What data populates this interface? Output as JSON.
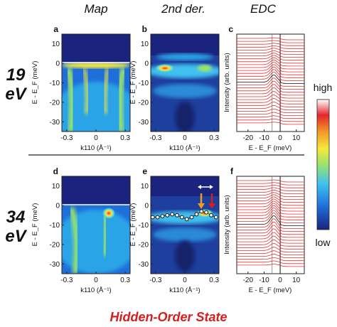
{
  "columns": [
    "Map",
    "2nd der.",
    "EDC"
  ],
  "rows": [
    {
      "line1": "19",
      "line2": "eV"
    },
    {
      "line1": "34",
      "line2": "eV"
    }
  ],
  "panel_labels": {
    "a": "a",
    "b": "b",
    "c": "c",
    "d": "d",
    "e": "e",
    "f": "f"
  },
  "axes": {
    "y_label": "E - E_F (meV)",
    "x_k_label": "k110 (Å⁻¹)",
    "edc_y_label": "Intensity (arb. units)",
    "edc_x_label": "E - E_F (meV)",
    "y_ticks": [
      "10",
      "0",
      "-10",
      "-20",
      "-30"
    ],
    "k_ticks": [
      "-0.3",
      "0",
      "0.3"
    ],
    "edc_ticks": [
      "-20",
      "-10",
      "0",
      "10"
    ]
  },
  "colorbar": {
    "high": "high",
    "low": "low",
    "colors": [
      "#1a237e",
      "#1e6fd9",
      "#3fc1f0",
      "#9be36b",
      "#f7e93a",
      "#f29a27",
      "#e3262a",
      "#ffffff"
    ]
  },
  "title": "Hidden-Order State",
  "chart_data": [
    {
      "type": "heatmap",
      "panel": "a",
      "xlim": [
        -0.35,
        0.35
      ],
      "ylim": [
        -35,
        15
      ],
      "xlabel": "k110 (Å⁻¹)",
      "ylabel": "E - E_F (meV)"
    },
    {
      "type": "heatmap",
      "panel": "b",
      "xlim": [
        -0.35,
        0.35
      ],
      "ylim": [
        -35,
        15
      ],
      "xlabel": "k110 (Å⁻¹)",
      "ylabel": "E - E_F (meV)"
    },
    {
      "type": "line",
      "panel": "c",
      "xlim": [
        -27,
        15
      ],
      "xlabel": "E - E_F (meV)",
      "ylabel": "Intensity (arb. units)",
      "n_curves": 30
    },
    {
      "type": "heatmap",
      "panel": "d",
      "xlim": [
        -0.35,
        0.35
      ],
      "ylim": [
        -35,
        15
      ],
      "xlabel": "k110 (Å⁻¹)",
      "ylabel": "E - E_F (meV)"
    },
    {
      "type": "heatmap",
      "panel": "e",
      "xlim": [
        -0.35,
        0.35
      ],
      "ylim": [
        -35,
        15
      ],
      "xlabel": "k110 (Å⁻¹)",
      "ylabel": "E - E_F (meV)",
      "dispersion": {
        "x": [
          -0.33,
          -0.28,
          -0.23,
          -0.18,
          -0.13,
          -0.08,
          -0.03,
          0.02,
          0.07,
          0.12,
          0.17,
          0.22,
          0.27,
          0.32
        ],
        "y": [
          -6,
          -6,
          -5.5,
          -5,
          -4.5,
          -5,
          -6,
          -7,
          -6,
          -4.5,
          -3,
          -3.5,
          -5,
          -6
        ]
      }
    },
    {
      "type": "line",
      "panel": "f",
      "xlim": [
        -27,
        15
      ],
      "xlabel": "E - E_F (meV)",
      "ylabel": "Intensity (arb. units)",
      "n_curves": 30
    }
  ]
}
